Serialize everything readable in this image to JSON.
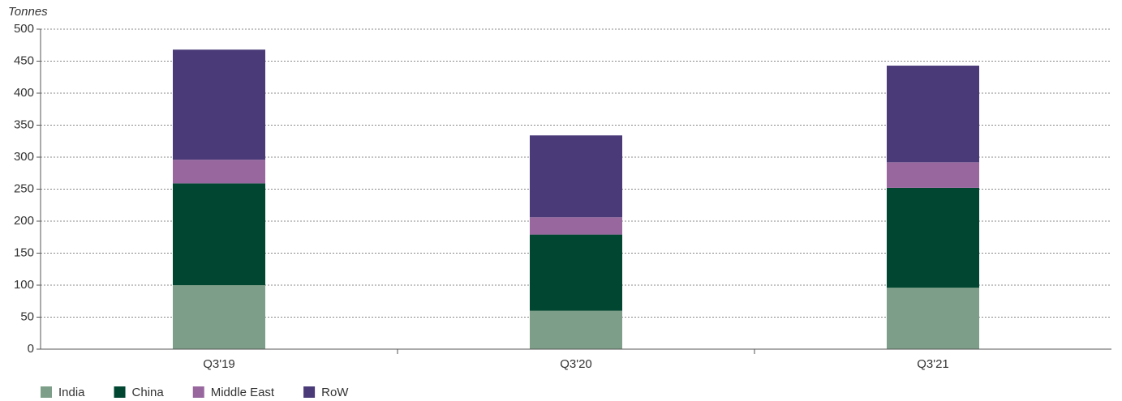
{
  "chart_data": {
    "type": "stacked_bar",
    "y_label": "Tonnes",
    "categories": [
      "Q3'19",
      "Q3'20",
      "Q3'21"
    ],
    "series": [
      {
        "name": "India",
        "color": "#7d9e88",
        "values": [
          100,
          60,
          96
        ]
      },
      {
        "name": "China",
        "color": "#004631",
        "values": [
          159,
          119,
          156
        ]
      },
      {
        "name": "Middle East",
        "color": "#98679e",
        "values": [
          37,
          27,
          40
        ]
      },
      {
        "name": "RoW",
        "color": "#4a3a78",
        "values": [
          172,
          128,
          151
        ]
      }
    ],
    "ylim": [
      0,
      500
    ],
    "yticks": [
      0,
      50,
      100,
      150,
      200,
      250,
      300,
      350,
      400,
      450,
      500
    ],
    "grid": true
  }
}
